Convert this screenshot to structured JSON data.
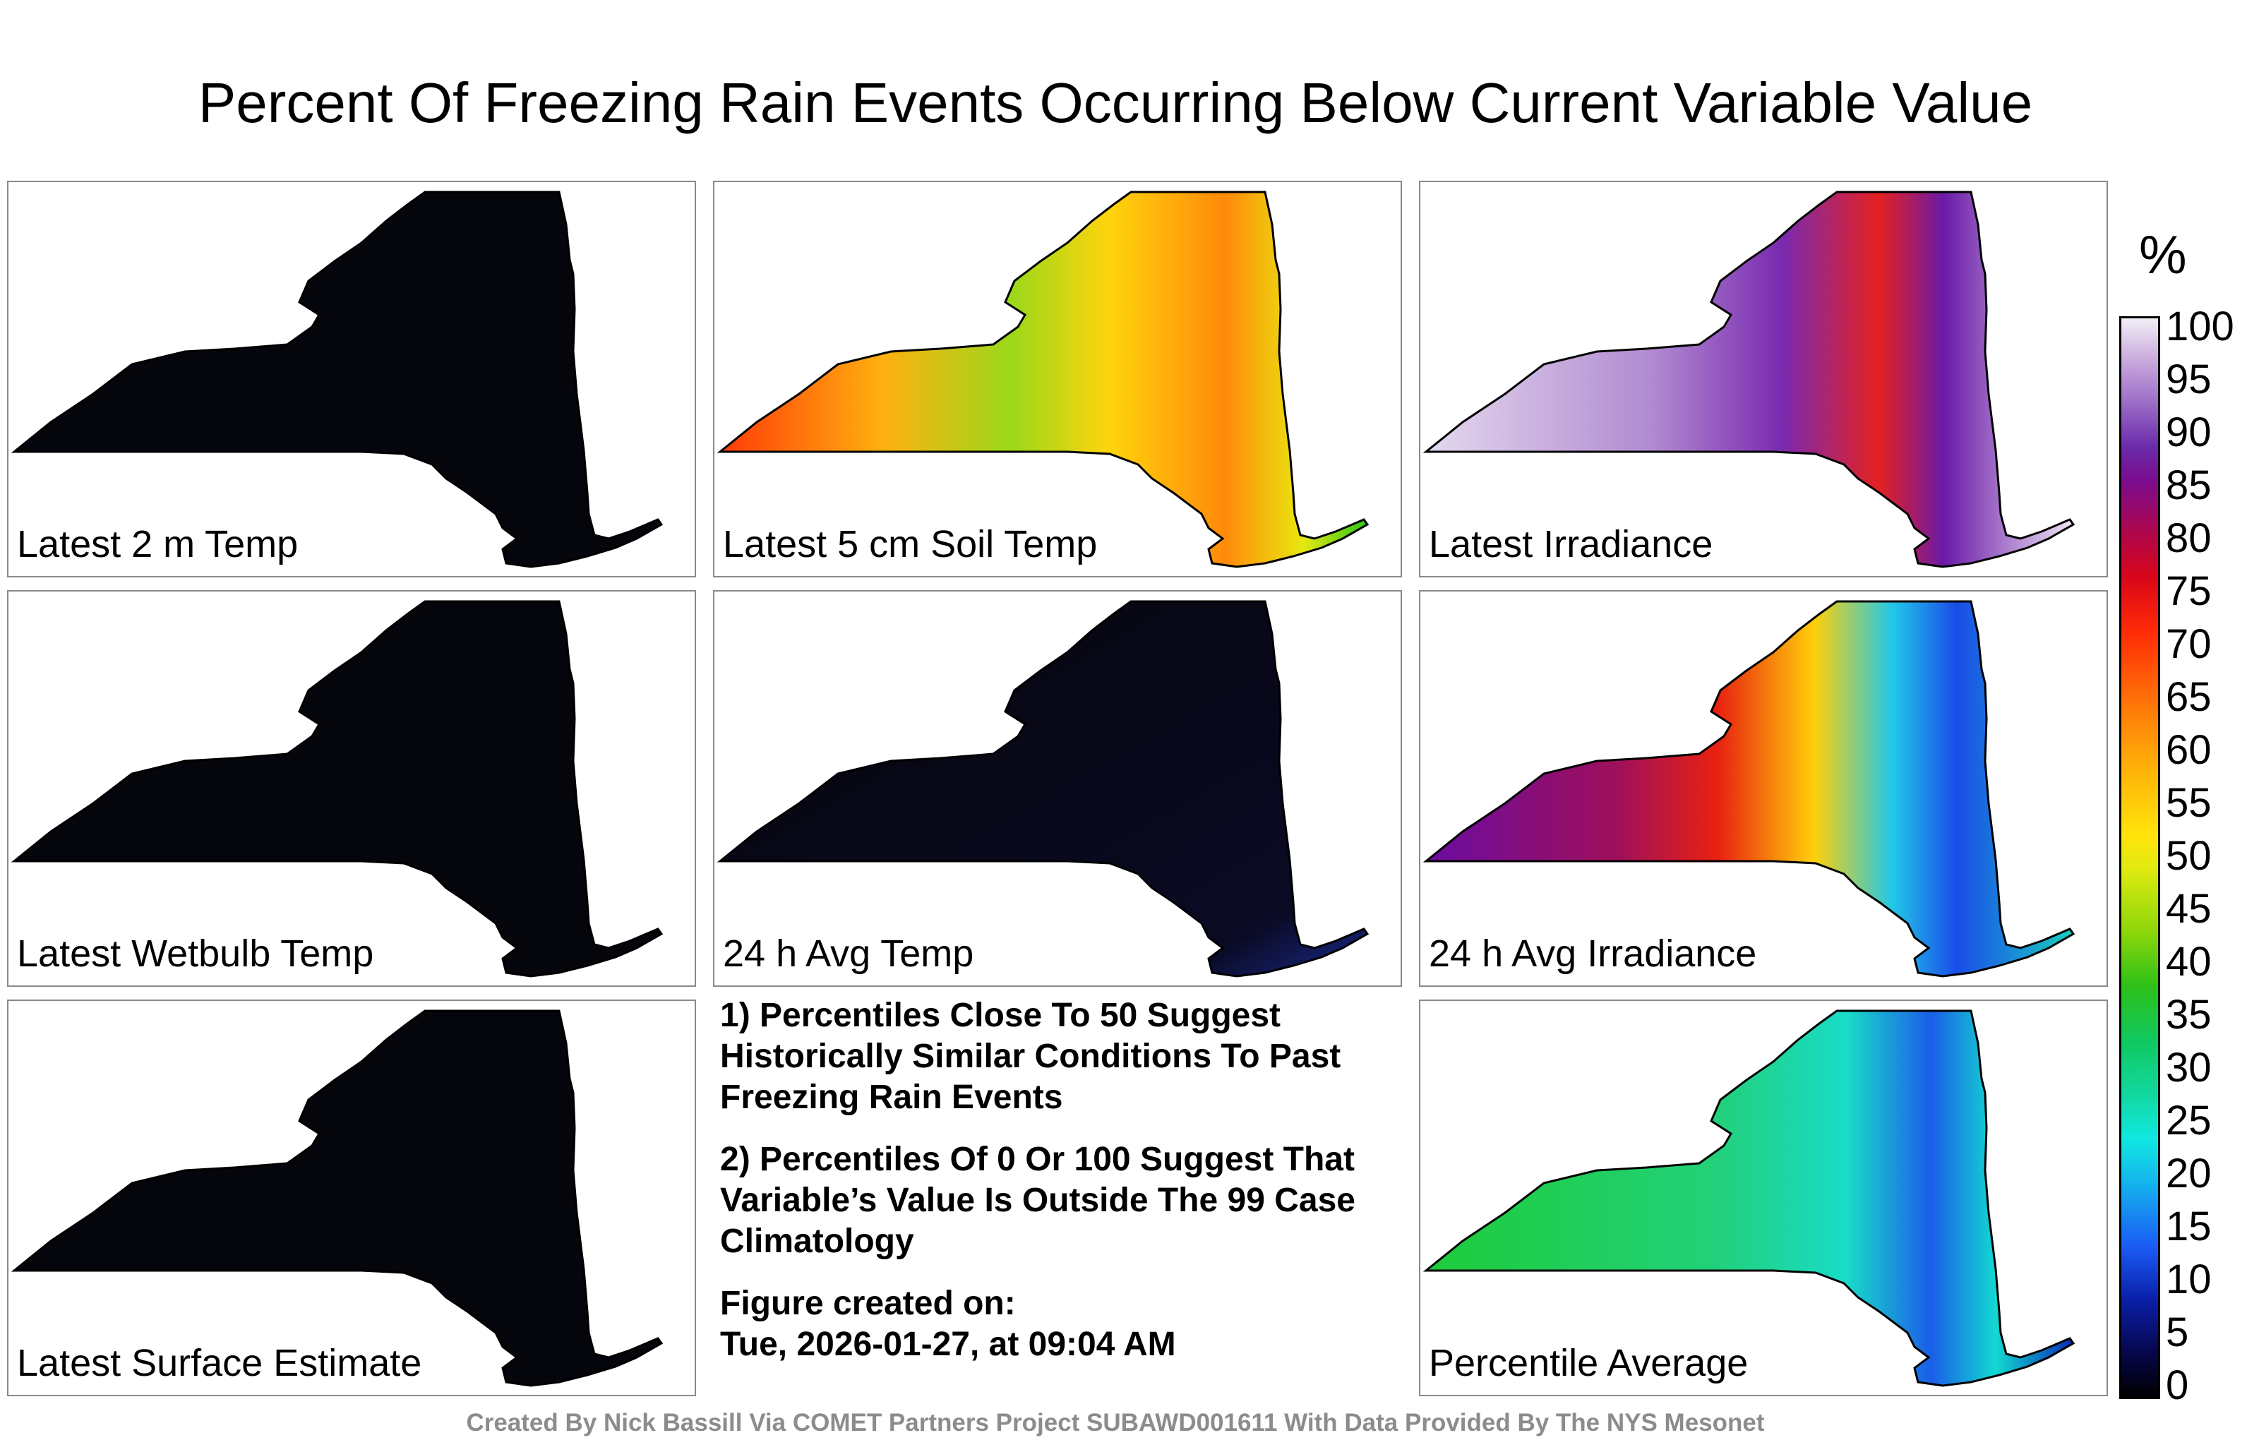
{
  "title": "Percent Of Freezing Rain Events Occurring Below Current Variable Value",
  "panels": [
    {
      "id": "latest-2m-temp",
      "label": "Latest 2 m Temp"
    },
    {
      "id": "latest-5cm-soil-temp",
      "label": "Latest 5 cm Soil Temp"
    },
    {
      "id": "latest-irradiance",
      "label": "Latest Irradiance"
    },
    {
      "id": "latest-wetbulb-temp",
      "label": "Latest Wetbulb Temp"
    },
    {
      "id": "24h-avg-temp",
      "label": "24 h Avg Temp"
    },
    {
      "id": "24h-avg-irradiance",
      "label": "24 h Avg Irradiance"
    },
    {
      "id": "latest-surface-estimate",
      "label": "Latest Surface Estimate"
    },
    {
      "id": "percentile-average",
      "label": "Percentile Average"
    }
  ],
  "notes": {
    "note1": "1) Percentiles Close To 50 Suggest Historically Similar Conditions To Past Freezing Rain Events",
    "note2": "2) Percentiles Of 0 Or 100 Suggest That Variable’s Value Is Outside The 99 Case Climatology",
    "created_label": "Figure created on:",
    "created_date": "Tue, 2026-01-27, at 09:04 AM"
  },
  "colorbar": {
    "unit": "%",
    "ticks": [
      "100",
      "95",
      "90",
      "85",
      "80",
      "75",
      "70",
      "65",
      "60",
      "55",
      "50",
      "45",
      "40",
      "35",
      "30",
      "25",
      "20",
      "15",
      "10",
      "5",
      "0"
    ]
  },
  "footer": "Created By Nick Bassill Via COMET Partners Project SUBAWD001611 With Data Provided By The NYS Mesonet"
}
